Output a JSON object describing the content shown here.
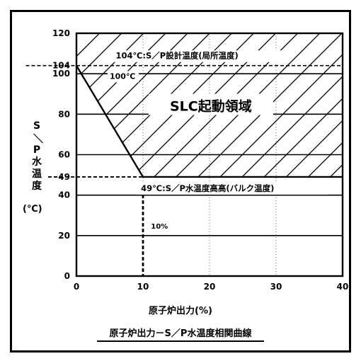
{
  "chart_data": {
    "type": "line",
    "title": "原子炉出力－S／P水温度相関曲線",
    "xlabel": "原子炉出力(%)",
    "ylabel": "S/P水温度",
    "yunit": "(℃)",
    "xlim": [
      0,
      40
    ],
    "ylim": [
      0,
      120
    ],
    "x_ticks": [
      "0",
      "10",
      "20",
      "30",
      "40"
    ],
    "y_ticks": [
      "0",
      "20",
      "40",
      "49",
      "60",
      "80",
      "100",
      "104",
      "120"
    ],
    "grid": true,
    "series": [
      {
        "x": [
          0,
          10,
          40
        ],
        "y": [
          104,
          49,
          49
        ]
      }
    ],
    "region_label": "SLC起動領域",
    "annotations": {
      "upper": "104℃:S／P設計温度(局所温度)",
      "mid": "100℃",
      "lower": "49℃:S／P水温度高高(バルク温度)",
      "vertical": "10%"
    }
  }
}
